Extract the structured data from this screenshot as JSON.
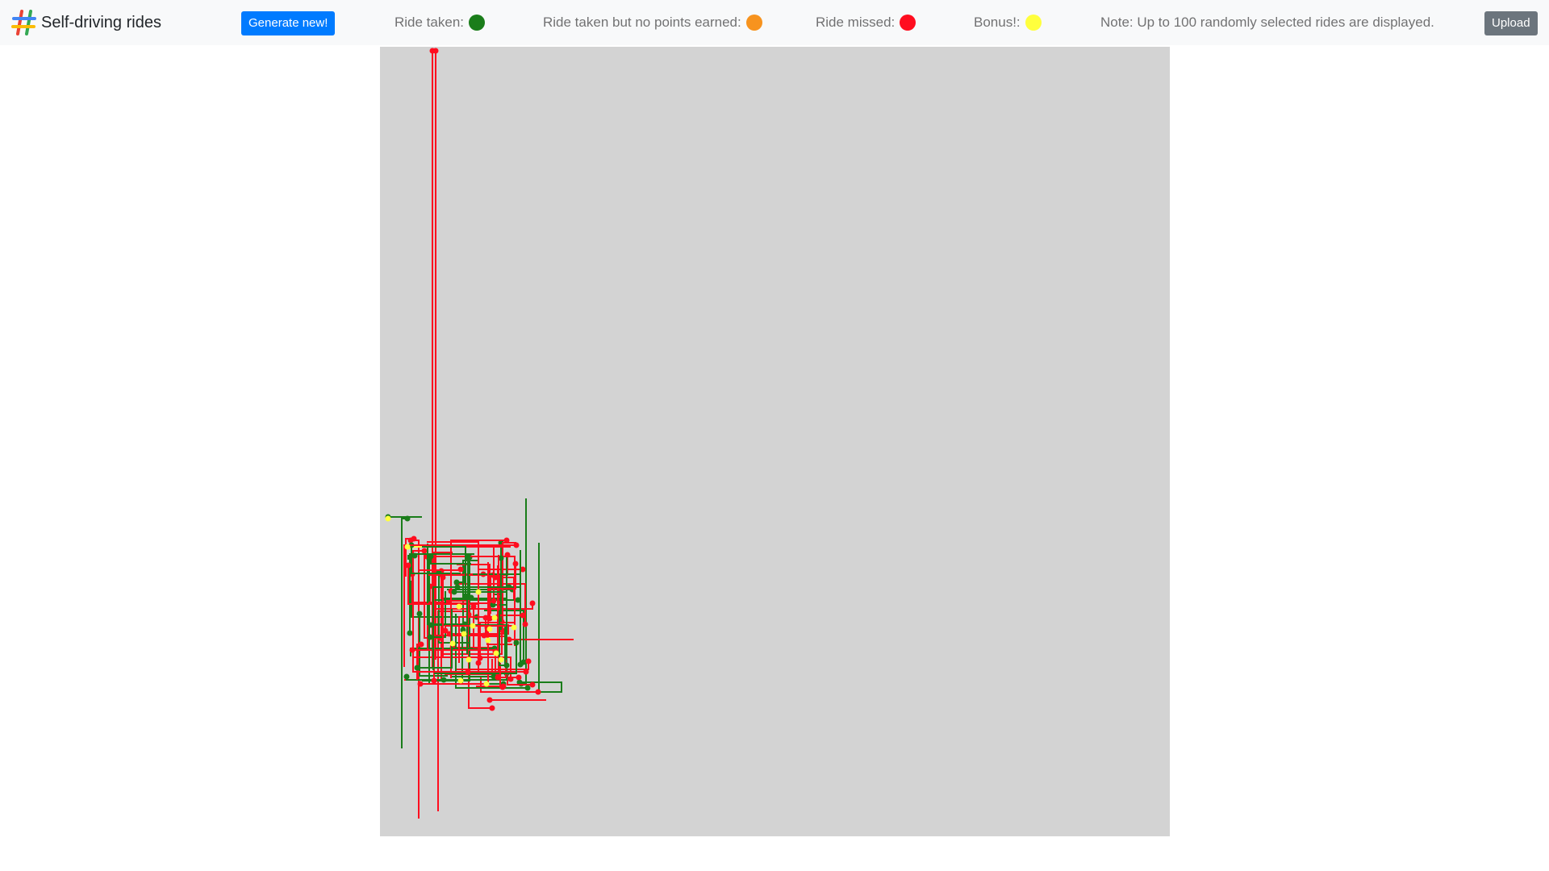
{
  "navbar": {
    "logo_icon": "hash-icon",
    "title": "Self-driving rides",
    "generate_button": "Generate new!",
    "upload_button": "Upload",
    "note": "Note: Up to 100 randomly selected rides are displayed."
  },
  "legend": [
    {
      "label": "Ride taken:",
      "color": "#1a7d1a",
      "status": "taken"
    },
    {
      "label": "Ride taken but no points earned:",
      "color": "#f7931e",
      "status": "no-points"
    },
    {
      "label": "Ride missed:",
      "color": "#ff0d1f",
      "status": "missed"
    },
    {
      "label": "Bonus!:",
      "color": "#ffff3d",
      "status": "bonus"
    }
  ],
  "map": {
    "background_color": "#d3d3d3",
    "colors": {
      "taken": "#1a7d1a",
      "missed": "#ff0d1f",
      "bonus": "#ffff3d"
    }
  }
}
